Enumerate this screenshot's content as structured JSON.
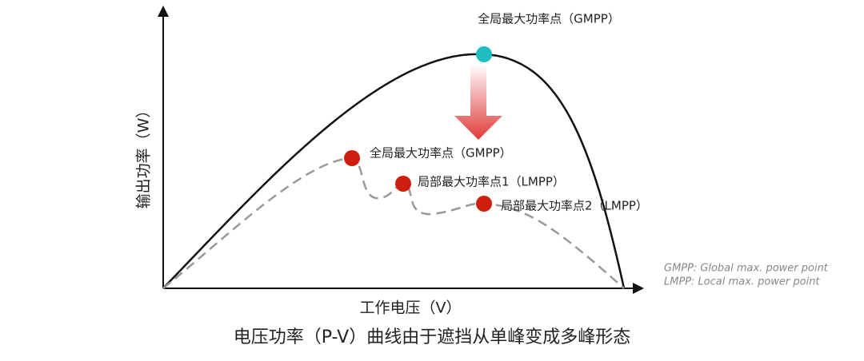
{
  "axes": {
    "x_label": "工作电压（V）",
    "y_label": "输出功率（W）"
  },
  "annotations": [
    "全局最大功率点（GMPP）",
    "全局最大功率点（GMPP）",
    "局部最大功率点1（LMPP）",
    "局部最大功率点2（LMPP）"
  ],
  "notes": [
    "GMPP: Global max. power point",
    "LMPP: Local max. power point"
  ],
  "caption": "电压功率（P-V）曲线由于遮挡从单峰变成多峰形态"
}
